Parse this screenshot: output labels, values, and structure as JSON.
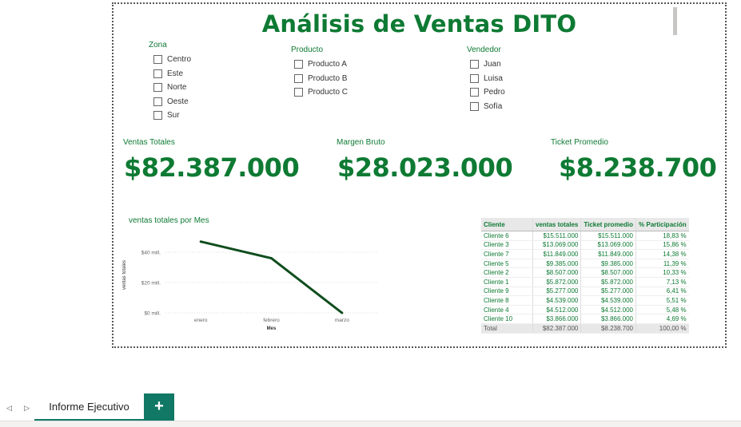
{
  "report": {
    "title": "Análisis de Ventas DITO"
  },
  "slicers": {
    "zona": {
      "title": "Zona",
      "items": [
        "Centro",
        "Este",
        "Norte",
        "Oeste",
        "Sur"
      ]
    },
    "producto": {
      "title": "Producto",
      "items": [
        "Producto A",
        "Producto B",
        "Producto C"
      ]
    },
    "vendedor": {
      "title": "Vendedor",
      "items": [
        "Juan",
        "Luisa",
        "Pedro",
        "Sofía"
      ]
    }
  },
  "kpis": {
    "ventas": {
      "label": "Ventas Totales",
      "value": "$82.387.000"
    },
    "margen": {
      "label": "Margen Bruto",
      "value": "$28.023.000"
    },
    "ticket": {
      "label": "Ticket Promedio",
      "value": "$8.238.700"
    }
  },
  "chart_data": {
    "type": "line",
    "title": "ventas totales por Mes",
    "xlabel": "Mes",
    "ylabel": "ventas totales",
    "categories": [
      "enero",
      "febrero",
      "marzo"
    ],
    "series": [
      {
        "values": [
          47,
          36,
          0
        ]
      }
    ],
    "yticks": [
      0,
      20,
      40
    ],
    "ytick_labels": [
      "$0 mill.",
      "$20 mill.",
      "$40 mill."
    ],
    "ylim": [
      0,
      50
    ],
    "grid": true,
    "line_color": "#0f4d1d"
  },
  "table": {
    "headers": [
      "Cliente",
      "ventas totales",
      "Ticket promedio",
      "% Participación"
    ],
    "rows": [
      [
        "Cliente 6",
        "$15.511.000",
        "$15.511.000",
        "18,83 %"
      ],
      [
        "Cliente 3",
        "$13.069.000",
        "$13.069.000",
        "15,86 %"
      ],
      [
        "Cliente 7",
        "$11.849.000",
        "$11.849.000",
        "14,38 %"
      ],
      [
        "Cliente 5",
        "$9.385.000",
        "$9.385.000",
        "11,39 %"
      ],
      [
        "Cliente 2",
        "$8.507.000",
        "$8.507.000",
        "10,33 %"
      ],
      [
        "Cliente 1",
        "$5.872.000",
        "$5.872.000",
        "7,13 %"
      ],
      [
        "Cliente 9",
        "$5.277.000",
        "$5.277.000",
        "6,41 %"
      ],
      [
        "Cliente 8",
        "$4.539.000",
        "$4.539.000",
        "5,51 %"
      ],
      [
        "Cliente 4",
        "$4.512.000",
        "$4.512.000",
        "5,48 %"
      ],
      [
        "Cliente 10",
        "$3.866.000",
        "$3.866.000",
        "4,69 %"
      ]
    ],
    "total": [
      "Total",
      "$82.387.000",
      "$8.238.700",
      "100,00 %"
    ]
  },
  "tabs": {
    "active": "Informe Ejecutivo",
    "add_label": "+",
    "prev_icon": "◁",
    "next_icon": "▷"
  },
  "colors": {
    "accent": "#0e7a33",
    "tab": "#117865"
  }
}
